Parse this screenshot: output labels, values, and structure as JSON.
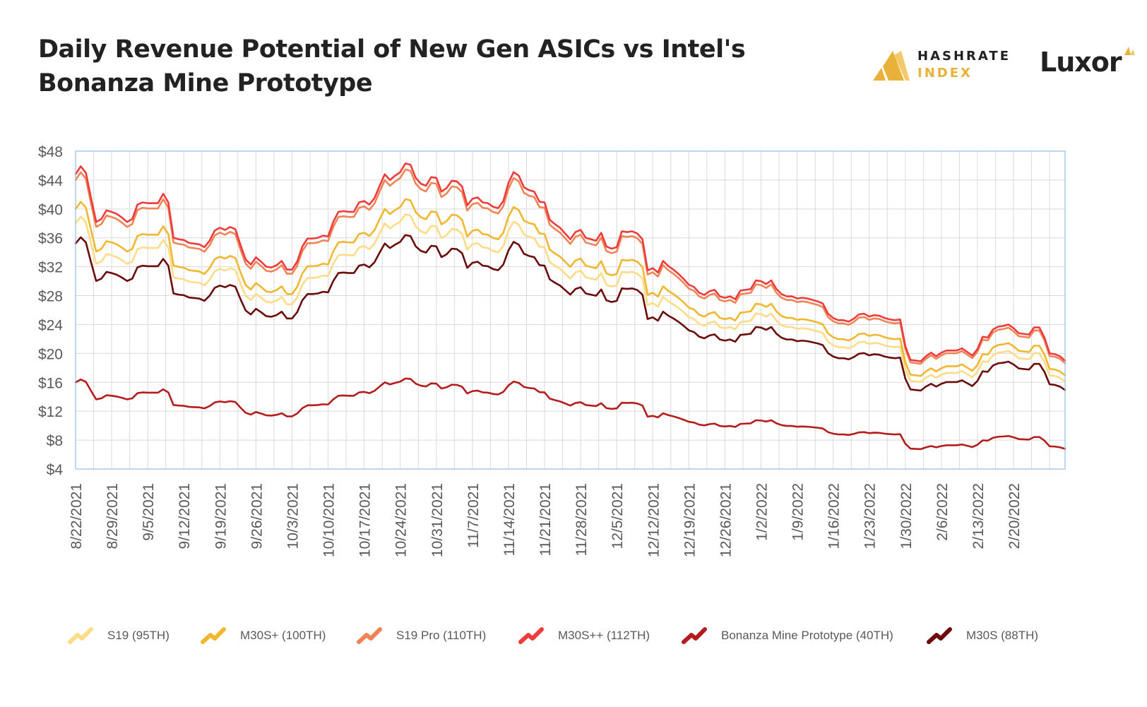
{
  "header": {
    "title_line1": "Daily Revenue Potential of New Gen ASICs vs Intel's",
    "title_line2": "Bonanza Mine Prototype",
    "brand1_line1": "HASHRATE",
    "brand1_line2": "INDEX",
    "brand2": "Luxor"
  },
  "colors": {
    "gold": "#e9b13a",
    "grid": "#d9d9d9",
    "frame": "#9dc3e6"
  },
  "chart_data": {
    "type": "line",
    "title": "Daily Revenue Potential of New Gen ASICs vs Intel's Bonanza Mine Prototype",
    "xlabel": "",
    "ylabel": "",
    "ylim": [
      4,
      48
    ],
    "y_ticks": [
      "$48",
      "$44",
      "$40",
      "$36",
      "$32",
      "$28",
      "$24",
      "$20",
      "$16",
      "$12",
      "$8",
      "$4"
    ],
    "x_tick_labels": [
      "8/22/2021",
      "8/29/2021",
      "9/5/2021",
      "9/12/2021",
      "9/19/2021",
      "9/26/2021",
      "10/3/2021",
      "10/10/2021",
      "10/17/2021",
      "10/24/2021",
      "10/31/2021",
      "11/7/2021",
      "11/14/2021",
      "11/21/2021",
      "11/28/2021",
      "12/5/2021",
      "12/12/2021",
      "12/19/2021",
      "12/26/2021",
      "1/2/2022",
      "1/9/2022",
      "1/16/2022",
      "1/23/2022",
      "1/30/2022",
      "2/6/2022",
      "2/13/2022",
      "2/20/2022"
    ],
    "x_start": "8/22/2021",
    "x_end": "2/23/2022",
    "grid": true,
    "legend_position": "bottom",
    "base_series": "M30S++ (112TH)",
    "base_values": [
      44.8,
      45.9,
      45.0,
      41.5,
      38.2,
      38.6,
      39.8,
      39.6,
      39.3,
      38.8,
      38.2,
      38.6,
      40.6,
      40.9,
      40.8,
      40.8,
      40.8,
      42.1,
      40.9,
      36.0,
      35.8,
      35.7,
      35.3,
      35.2,
      35.1,
      34.7,
      35.6,
      37.0,
      37.4,
      37.1,
      37.5,
      37.2,
      35.0,
      33.0,
      32.3,
      33.3,
      32.7,
      32.0,
      31.9,
      32.2,
      32.8,
      31.6,
      31.6,
      32.7,
      34.8,
      35.9,
      35.9,
      36.0,
      36.3,
      36.2,
      38.2,
      39.6,
      39.7,
      39.6,
      39.6,
      40.9,
      41.1,
      40.6,
      41.5,
      43.2,
      44.8,
      44.0,
      44.6,
      45.1,
      46.3,
      46.1,
      44.3,
      43.5,
      43.2,
      44.4,
      44.3,
      42.4,
      42.9,
      43.9,
      43.8,
      43.1,
      40.5,
      41.4,
      41.6,
      40.9,
      40.8,
      40.3,
      40.1,
      41.1,
      43.6,
      45.1,
      44.6,
      43.0,
      42.6,
      42.4,
      41.0,
      40.9,
      38.5,
      37.9,
      37.4,
      36.6,
      35.8,
      36.8,
      37.1,
      36.0,
      35.8,
      35.6,
      36.7,
      34.8,
      34.5,
      34.7,
      36.9,
      36.8,
      36.9,
      36.6,
      35.8,
      31.5,
      31.8,
      31.2,
      32.8,
      32.1,
      31.6,
      31.0,
      30.3,
      29.5,
      29.2,
      28.4,
      28.1,
      28.6,
      28.8,
      27.9,
      27.7,
      27.9,
      27.5,
      28.7,
      28.8,
      28.9,
      30.1,
      30.0,
      29.6,
      30.1,
      28.9,
      28.2,
      27.9,
      27.9,
      27.6,
      27.7,
      27.6,
      27.4,
      27.2,
      26.9,
      25.5,
      24.9,
      24.6,
      24.6,
      24.4,
      24.8,
      25.4,
      25.5,
      25.1,
      25.3,
      25.2,
      24.9,
      24.7,
      24.6,
      24.7,
      21.0,
      19.1,
      19.0,
      18.9,
      19.6,
      20.1,
      19.6,
      20.1,
      20.4,
      20.4,
      20.4,
      20.7,
      20.2,
      19.7,
      20.6,
      22.3,
      22.2,
      23.3,
      23.7,
      23.8,
      24.0,
      23.5,
      22.8,
      22.7,
      22.6,
      23.6,
      23.6,
      22.2,
      20.0,
      19.9,
      19.6,
      19.0
    ],
    "series": [
      {
        "name": "S19 (95TH)",
        "color": "#fddc87",
        "ratio": 0.848
      },
      {
        "name": "M30S+ (100TH)",
        "color": "#f0b72f",
        "ratio": 0.893
      },
      {
        "name": "S19 Pro (110TH)",
        "color": "#f08456",
        "ratio": 0.982
      },
      {
        "name": "M30S++ (112TH)",
        "color": "#ee3b3b",
        "ratio": 1.0
      },
      {
        "name": "Bonanza Mine Prototype (40TH)",
        "color": "#b51c1c",
        "ratio": 0.357
      },
      {
        "name": "M30S (88TH)",
        "color": "#6b0c0c",
        "ratio": 0.786
      }
    ]
  }
}
